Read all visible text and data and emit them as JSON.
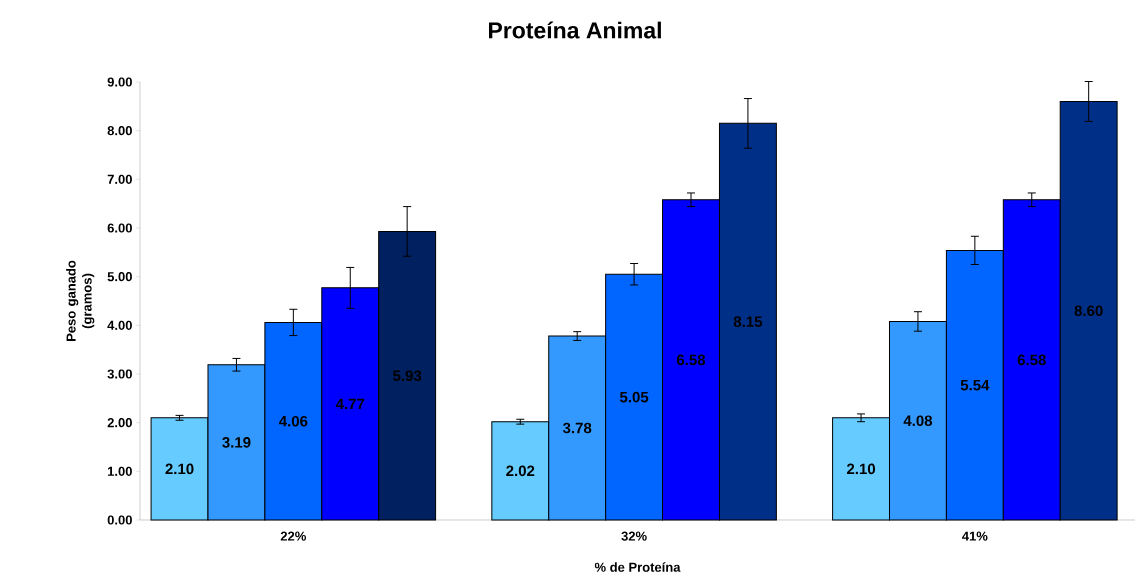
{
  "chart_data": {
    "type": "bar",
    "title": "Proteína Animal",
    "xlabel": "% de Proteína",
    "ylabel": "Peso ganado (gramos)",
    "categories": [
      "22%",
      "32%",
      "41%"
    ],
    "series": [
      {
        "colors": [
          "#66ccff",
          "#66ccff",
          "#66ccff"
        ],
        "values": [
          2.1,
          2.02,
          2.1
        ],
        "value_labels": [
          "2.10",
          "2.02",
          "2.10"
        ],
        "errors": [
          0.05,
          0.05,
          0.08
        ]
      },
      {
        "colors": [
          "#3399ff",
          "#3399ff",
          "#3399ff"
        ],
        "values": [
          3.19,
          3.78,
          4.08
        ],
        "value_labels": [
          "3.19",
          "3.78",
          "4.08"
        ],
        "errors": [
          0.13,
          0.09,
          0.2
        ]
      },
      {
        "colors": [
          "#0066ff",
          "#0066ff",
          "#0066ff"
        ],
        "values": [
          4.06,
          5.05,
          5.54
        ],
        "value_labels": [
          "4.06",
          "5.05",
          "5.54"
        ],
        "errors": [
          0.27,
          0.22,
          0.29
        ]
      },
      {
        "colors": [
          "#0000ff",
          "#0000ff",
          "#0000ff"
        ],
        "values": [
          4.77,
          6.58,
          6.58
        ],
        "value_labels": [
          "4.77",
          "6.58",
          "6.58"
        ],
        "errors": [
          0.42,
          0.14,
          0.14
        ]
      },
      {
        "colors": [
          "#00205f",
          "#002f87",
          "#002f87"
        ],
        "values": [
          5.93,
          8.15,
          8.6
        ],
        "value_labels": [
          "5.93",
          "8.15",
          "8.60"
        ],
        "errors": [
          0.51,
          0.51,
          0.41
        ]
      }
    ],
    "ylim": [
      0,
      9
    ],
    "yticks": [
      {
        "value": 0,
        "label": "0.00"
      },
      {
        "value": 1,
        "label": "1.00"
      },
      {
        "value": 2,
        "label": "2.00"
      },
      {
        "value": 3,
        "label": "3.00"
      },
      {
        "value": 4,
        "label": "4.00"
      },
      {
        "value": 5,
        "label": "5.00"
      },
      {
        "value": 6,
        "label": "6.00"
      },
      {
        "value": 7,
        "label": "7.00"
      },
      {
        "value": 8,
        "label": "8.00"
      },
      {
        "value": 9,
        "label": "9.00"
      }
    ],
    "grid": false
  }
}
